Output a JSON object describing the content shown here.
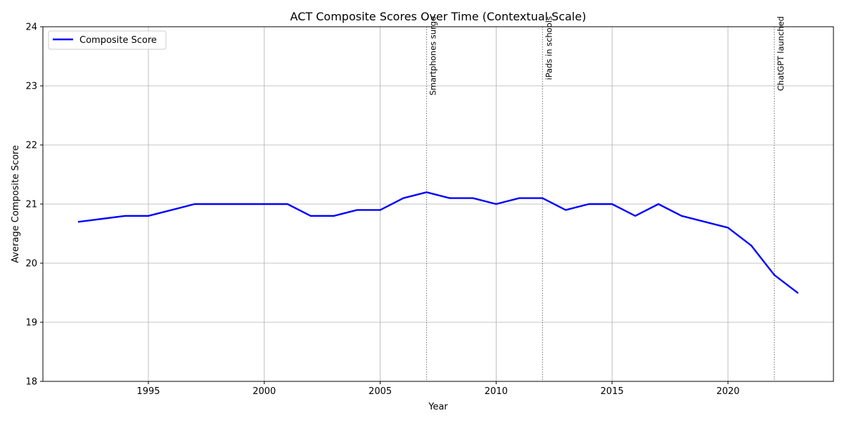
{
  "chart_data": {
    "type": "line",
    "title": "ACT Composite Scores Over Time (Contextual Scale)",
    "xlabel": "Year",
    "ylabel": "Average Composite Score",
    "xlim": [
      1990.45,
      2024.55
    ],
    "ylim": [
      18,
      24
    ],
    "xticks": [
      1995,
      2000,
      2005,
      2010,
      2015,
      2020
    ],
    "yticks": [
      18,
      19,
      20,
      21,
      22,
      23,
      24
    ],
    "grid": true,
    "legend_position": "upper-left",
    "series": [
      {
        "name": "Composite Score",
        "color": "#0000ff",
        "x": [
          1992,
          1993,
          1994,
          1995,
          1996,
          1997,
          1998,
          1999,
          2000,
          2001,
          2002,
          2003,
          2004,
          2005,
          2006,
          2007,
          2008,
          2009,
          2010,
          2011,
          2012,
          2013,
          2014,
          2015,
          2016,
          2017,
          2018,
          2019,
          2020,
          2021,
          2022,
          2023
        ],
        "y": [
          20.7,
          20.75,
          20.8,
          20.8,
          20.9,
          21.0,
          21.0,
          21.0,
          21.0,
          21.0,
          20.8,
          20.8,
          20.9,
          20.9,
          21.1,
          21.2,
          21.1,
          21.1,
          21.0,
          21.1,
          21.1,
          20.9,
          21.0,
          21.0,
          20.8,
          21.0,
          20.8,
          20.7,
          20.6,
          20.3,
          19.8,
          19.5
        ]
      }
    ],
    "annotations": [
      {
        "x": 2007,
        "label": "Smartphones surge"
      },
      {
        "x": 2012,
        "label": "iPads in schools"
      },
      {
        "x": 2022,
        "label": "ChatGPT launched"
      }
    ]
  }
}
